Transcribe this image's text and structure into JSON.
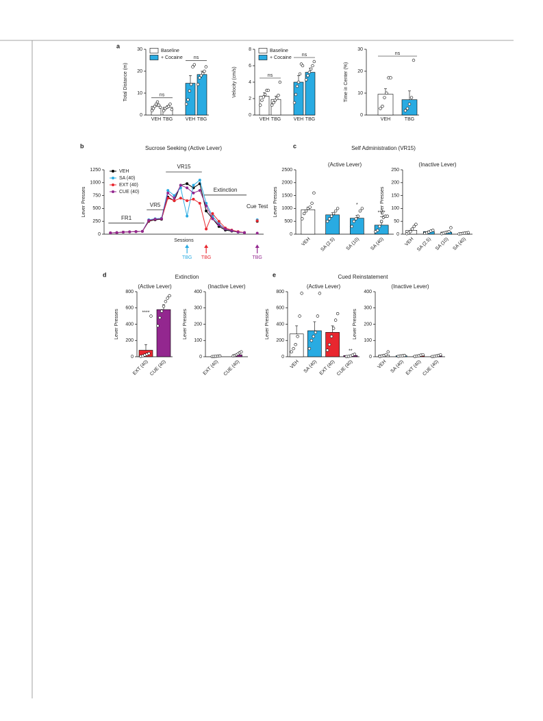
{
  "chart_data": [
    {
      "type": "bar",
      "panel": "a",
      "ylabel": "Total Distance (m)",
      "categories": [
        "VEH",
        "TBG",
        "VEH",
        "TBG"
      ],
      "values": [
        4,
        3.5,
        14.5,
        18.5
      ],
      "errors": [
        1,
        0.8,
        3.5,
        1.5
      ],
      "points": [
        [
          2,
          3,
          4,
          5,
          6,
          4.5,
          3.5
        ],
        [
          2,
          3,
          3.5,
          4,
          5,
          2.5
        ],
        [
          5,
          7,
          11,
          14,
          22,
          23
        ],
        [
          14,
          17,
          18,
          19,
          20,
          22
        ]
      ],
      "colors": [
        "#ffffff",
        "#ffffff",
        "#29abe2",
        "#29abe2"
      ],
      "legend": [
        {
          "name": "Baseline",
          "color": "#ffffff"
        },
        {
          "name": "+ Cocaine",
          "color": "#29abe2"
        }
      ],
      "brackets": [
        {
          "from": 0,
          "to": 1,
          "label": "ns"
        },
        {
          "from": 2,
          "to": 3,
          "label": "ns"
        }
      ],
      "ylim": [
        0,
        30
      ],
      "yticks": [
        0,
        10,
        20,
        30
      ]
    },
    {
      "type": "bar",
      "ylabel": "Velocity (cm/s)",
      "categories": [
        "VEH",
        "TBG",
        "VEH",
        "TBG"
      ],
      "values": [
        2.3,
        1.9,
        4.0,
        5.2
      ],
      "errors": [
        0.4,
        0.4,
        0.8,
        0.5
      ],
      "points": [
        [
          1.2,
          1.8,
          2.2,
          2.5,
          3.0,
          3.0
        ],
        [
          1.2,
          1.5,
          1.8,
          2.0,
          2.4,
          4.0
        ],
        [
          1.5,
          2.5,
          3.5,
          4,
          5,
          6.2,
          6.0
        ],
        [
          4.3,
          4.8,
          5.2,
          5.6,
          6.0,
          6.5
        ]
      ],
      "colors": [
        "#ffffff",
        "#ffffff",
        "#29abe2",
        "#29abe2"
      ],
      "legend": [
        {
          "name": "Baseline",
          "color": "#ffffff"
        },
        {
          "name": "+ Cocaine",
          "color": "#29abe2"
        }
      ],
      "brackets": [
        {
          "from": 0,
          "to": 1,
          "label": "ns"
        },
        {
          "from": 2,
          "to": 3,
          "label": "ns"
        }
      ],
      "ylim": [
        0,
        8
      ],
      "yticks": [
        0,
        2,
        4,
        6,
        8
      ]
    },
    {
      "type": "bar",
      "ylabel": "Time in Center (%)",
      "categories": [
        "VEH",
        "TBG"
      ],
      "values": [
        9.5,
        7
      ],
      "errors": [
        2.5,
        4
      ],
      "points": [
        [
          3,
          4,
          8,
          10,
          17,
          17
        ],
        [
          2,
          3,
          5,
          8,
          25
        ]
      ],
      "colors": [
        "#ffffff",
        "#29abe2"
      ],
      "brackets": [
        {
          "from": 0,
          "to": 1,
          "label": "ns"
        }
      ],
      "ylim": [
        0,
        30
      ],
      "yticks": [
        0,
        10,
        20,
        30
      ]
    },
    {
      "type": "line",
      "panel": "b",
      "title": "Sucrose Seeking (Active Lever)",
      "ylabel": "Lever Presses",
      "xlabel": "Sessions",
      "x": [
        1,
        2,
        3,
        4,
        5,
        6,
        7,
        8,
        9,
        10,
        11,
        12,
        13,
        14,
        15,
        16,
        17,
        18,
        19,
        20,
        21,
        22,
        23,
        24
      ],
      "series": [
        {
          "name": "VEH",
          "color": "#000000",
          "values": [
            25,
            30,
            40,
            45,
            50,
            55,
            250,
            280,
            290,
            720,
            650,
            950,
            980,
            900,
            980,
            450,
            300,
            150,
            80,
            60,
            40,
            30,
            null,
            250
          ]
        },
        {
          "name": "SA (40)",
          "color": "#29abe2",
          "values": [
            25,
            30,
            40,
            45,
            50,
            55,
            280,
            300,
            310,
            850,
            750,
            900,
            350,
            950,
            1050,
            600,
            350,
            200,
            100,
            70,
            40,
            30,
            null,
            280
          ]
        },
        {
          "name": "EXT (40)",
          "color": "#e8272f",
          "values": [
            25,
            30,
            40,
            45,
            50,
            55,
            260,
            290,
            300,
            700,
            650,
            700,
            650,
            680,
            600,
            100,
            400,
            250,
            120,
            80,
            50,
            30,
            null,
            260
          ]
        },
        {
          "name": "CUE (40)",
          "color": "#93278f",
          "values": [
            25,
            30,
            40,
            45,
            50,
            55,
            270,
            290,
            300,
            800,
            700,
            950,
            900,
            800,
            850,
            550,
            300,
            180,
            100,
            70,
            40,
            30,
            null,
            20
          ]
        }
      ],
      "phases": [
        {
          "label": "FR1",
          "start": 1,
          "end": 6
        },
        {
          "label": "VR5",
          "start": 7,
          "end": 9
        },
        {
          "label": "VR15",
          "start": 10,
          "end": 15
        },
        {
          "label": "Extinction",
          "start": 16,
          "end": 22
        },
        {
          "label": "Cue Test",
          "start": 24,
          "end": 24
        }
      ],
      "annotations": [
        {
          "label": "TBG",
          "x": 13,
          "color": "#29abe2"
        },
        {
          "label": "TBG",
          "x": 16,
          "color": "#e8272f"
        },
        {
          "label": "TBG",
          "x": 24,
          "color": "#93278f"
        }
      ],
      "xlim": [
        0,
        25
      ],
      "ylim": [
        0,
        1250
      ],
      "yticks": [
        0,
        250,
        500,
        750,
        1000,
        1250
      ]
    },
    {
      "type": "bar",
      "panel": "c",
      "title": "Self Administration (VR15)",
      "subtitle": "(Active Lever)",
      "ylabel": "Lever Presses",
      "categories": [
        "VEH",
        "SA (2.5)",
        "SA (10)",
        "SA (40)"
      ],
      "values": [
        950,
        750,
        620,
        350
      ],
      "errors": [
        100,
        80,
        110,
        100
      ],
      "points": [
        [
          600,
          800,
          900,
          1000,
          1050,
          1200,
          1600
        ],
        [
          500,
          600,
          700,
          800,
          900,
          1000
        ],
        [
          300,
          500,
          600,
          700,
          900,
          1000
        ],
        [
          100,
          150,
          300,
          500,
          650,
          700,
          700
        ]
      ],
      "colors": [
        "#ffffff",
        "#29abe2",
        "#29abe2",
        "#29abe2"
      ],
      "stars": [
        {
          "index": 2,
          "label": "*"
        },
        {
          "index": 3,
          "label": "****"
        }
      ],
      "ylim": [
        0,
        2500
      ],
      "yticks": [
        0,
        500,
        1000,
        1500,
        2000,
        2500
      ]
    },
    {
      "type": "bar",
      "subtitle": "(Inactive Lever)",
      "ylabel": "Lever Presses",
      "categories": [
        "VEH",
        "SA (2.5)",
        "SA (10)",
        "SA (40)"
      ],
      "values": [
        15,
        10,
        8,
        4
      ],
      "errors": [
        5,
        3,
        3,
        1.5
      ],
      "points": [
        [
          2,
          5,
          10,
          20,
          30,
          38
        ],
        [
          3,
          5,
          8,
          12,
          15
        ],
        [
          2,
          4,
          6,
          8,
          10,
          25
        ],
        [
          1,
          2,
          3,
          4,
          5,
          6
        ]
      ],
      "colors": [
        "#ffffff",
        "#29abe2",
        "#29abe2",
        "#29abe2"
      ],
      "ylim": [
        0,
        250
      ],
      "yticks": [
        0,
        50,
        100,
        150,
        200,
        250
      ]
    },
    {
      "type": "bar",
      "panel": "d",
      "title": "Extinction",
      "subtitle": "(Active Lever)",
      "ylabel": "Lever Presses",
      "categories": [
        "EXT (40)",
        "CUE (40)"
      ],
      "values": [
        80,
        580
      ],
      "errors": [
        70,
        60
      ],
      "points": [
        [
          5,
          10,
          20,
          30,
          40,
          500
        ],
        [
          380,
          480,
          560,
          620,
          680,
          720,
          750
        ]
      ],
      "colors": [
        "#e8272f",
        "#93278f"
      ],
      "stars": [
        {
          "index": 0,
          "label": "****"
        }
      ],
      "ylim": [
        0,
        800
      ],
      "yticks": [
        0,
        200,
        400,
        600,
        800
      ]
    },
    {
      "type": "bar",
      "subtitle": "(Inactive Lever)",
      "ylabel": "Lever Presses",
      "categories": [
        "EXT (40)",
        "CUE (40)"
      ],
      "values": [
        3,
        12
      ],
      "errors": [
        1,
        5
      ],
      "points": [
        [
          1,
          2,
          3,
          4,
          5
        ],
        [
          5,
          8,
          12,
          18,
          25,
          30
        ]
      ],
      "colors": [
        "#e8272f",
        "#93278f"
      ],
      "ylim": [
        0,
        400
      ],
      "yticks": [
        0,
        100,
        200,
        300,
        400
      ]
    },
    {
      "type": "bar",
      "panel": "e",
      "title": "Cued Reinstatement",
      "subtitle": "(Active Lever)",
      "ylabel": "Lever Presses",
      "categories": [
        "VEH",
        "SA (40)",
        "EXT (40)",
        "CUE (40)"
      ],
      "values": [
        280,
        320,
        300,
        15
      ],
      "errors": [
        100,
        110,
        80,
        5
      ],
      "points": [
        [
          60,
          100,
          150,
          250,
          500,
          780
        ],
        [
          100,
          200,
          250,
          300,
          500,
          780
        ],
        [
          80,
          150,
          250,
          350,
          450,
          530
        ],
        [
          2,
          5,
          10,
          20,
          30
        ]
      ],
      "colors": [
        "#ffffff",
        "#29abe2",
        "#e8272f",
        "#93278f"
      ],
      "stars": [
        {
          "index": 3,
          "label": "**"
        }
      ],
      "ylim": [
        0,
        800
      ],
      "yticks": [
        0,
        200,
        400,
        600,
        800
      ]
    },
    {
      "type": "bar",
      "subtitle": "(Inactive Lever)",
      "ylabel": "Lever Presses",
      "categories": [
        "VEH",
        "SA (40)",
        "EXT (40)",
        "CUE (40)"
      ],
      "values": [
        10,
        6,
        6,
        5
      ],
      "errors": [
        3,
        1,
        2,
        1
      ],
      "points": [
        [
          2,
          5,
          8,
          12,
          30
        ],
        [
          3,
          5,
          6,
          8
        ],
        [
          2,
          4,
          6,
          10,
          12
        ],
        [
          1,
          3,
          5,
          8,
          12
        ]
      ],
      "colors": [
        "#ffffff",
        "#29abe2",
        "#e8272f",
        "#93278f"
      ],
      "ylim": [
        0,
        400
      ],
      "yticks": [
        0,
        100,
        200,
        300,
        400
      ]
    }
  ]
}
